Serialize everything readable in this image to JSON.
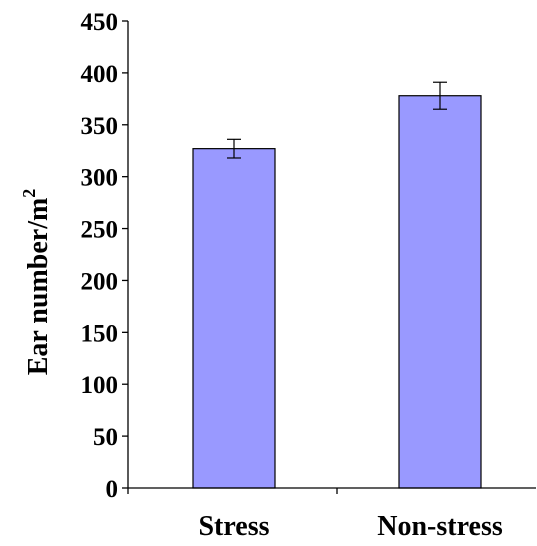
{
  "chart_data": {
    "type": "bar",
    "categories": [
      "Stress",
      "Non-stress"
    ],
    "values": [
      327,
      378
    ],
    "errors": [
      9,
      13
    ],
    "ylabel": "Ear number/m",
    "ylabel_superscript": "2",
    "xlabel": "",
    "title": "",
    "ylim": [
      0,
      450
    ],
    "yticks": [
      "0",
      "50",
      "100",
      "150",
      "200",
      "250",
      "300",
      "350",
      "400",
      "450"
    ],
    "grid": false,
    "legend": "none",
    "colors": {
      "bar_fill": "#9999ff",
      "bar_stroke": "#000000",
      "axis": "#000000",
      "text": "#000000"
    }
  }
}
